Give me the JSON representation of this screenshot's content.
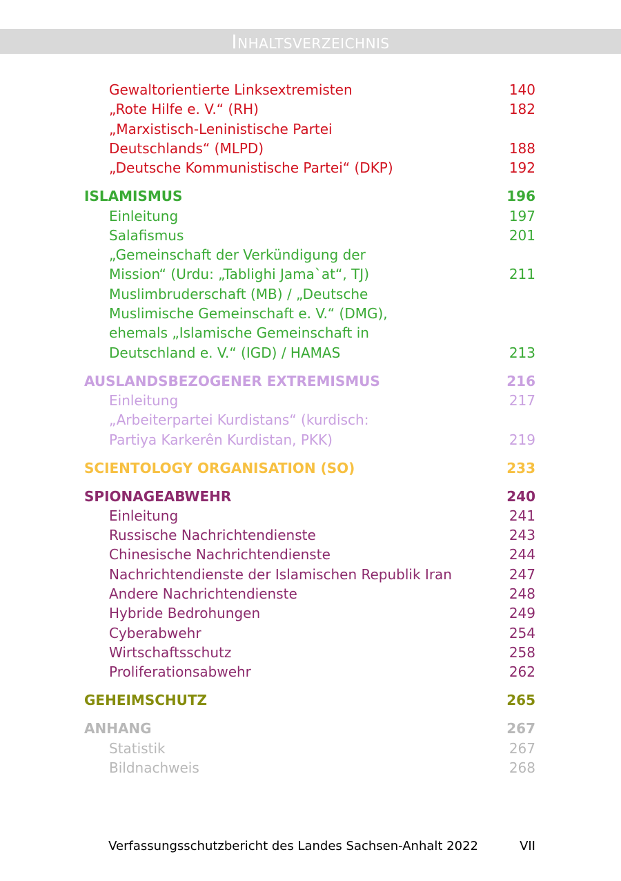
{
  "header": {
    "title": "Inhaltsverzeichnis"
  },
  "sections": [
    {
      "color": "#d1121f",
      "entries": [
        {
          "lines": [
            "Gewaltorientierte Linksextremisten"
          ],
          "page": "140"
        },
        {
          "lines": [
            "„Rote Hilfe e. V.“ (RH)"
          ],
          "page": "182"
        },
        {
          "lines": [
            "„Marxistisch-Leninistische Partei",
            "Deutschlands“ (MLPD)"
          ],
          "page": "188"
        },
        {
          "lines": [
            "„Deutsche Kommunistische Partei“ (DKP)"
          ],
          "page": "192"
        }
      ]
    },
    {
      "color": "#3aaa35",
      "heading": "ISLAMISMUS",
      "page": "196",
      "entries": [
        {
          "lines": [
            "Einleitung"
          ],
          "page": "197"
        },
        {
          "lines": [
            "Salafismus"
          ],
          "page": "201"
        },
        {
          "lines": [
            "„Gemeinschaft der Verkündigung der",
            "Mission“ (Urdu: „Tablighi Jama`at“, TJ)"
          ],
          "page": "211"
        },
        {
          "lines": [
            "Muslimbruderschaft (MB) / „Deutsche",
            "Muslimische Gemeinschaft e. V.“ (DMG),",
            "ehemals „Islamische Gemeinschaft in",
            "Deutschland e. V.“ (IGD) / HAMAS"
          ],
          "page": "213"
        }
      ]
    },
    {
      "color": "#c9a0e0",
      "heading": "AUSLANDSBEZOGENER EXTREMISMUS",
      "page": "216",
      "entries": [
        {
          "lines": [
            "Einleitung"
          ],
          "page": "217"
        },
        {
          "lines": [
            "„Arbeiterpartei Kurdistans“ (kurdisch:",
            "Partiya Karkerên Kurdistan, PKK)"
          ],
          "page": "219"
        }
      ]
    },
    {
      "color": "#f7c041",
      "heading": "SCIENTOLOGY ORGANISATION (SO)",
      "page": "233",
      "entries": []
    },
    {
      "color": "#8c2a6c",
      "heading": "SPIONAGEABWEHR",
      "page": "240",
      "entries": [
        {
          "lines": [
            "Einleitung"
          ],
          "page": "241"
        },
        {
          "lines": [
            "Russische Nachrichtendienste"
          ],
          "page": "243"
        },
        {
          "lines": [
            "Chinesische Nachrichtendienste"
          ],
          "page": "244"
        },
        {
          "lines": [
            "Nachrichtendienste der Islamischen Republik Iran"
          ],
          "page": "247"
        },
        {
          "lines": [
            "Andere Nachrichtendienste"
          ],
          "page": "248"
        },
        {
          "lines": [
            "Hybride Bedrohungen"
          ],
          "page": "249"
        },
        {
          "lines": [
            "Cyberabwehr"
          ],
          "page": "254"
        },
        {
          "lines": [
            "Wirtschaftsschutz"
          ],
          "page": "258"
        },
        {
          "lines": [
            "Proliferationsabwehr"
          ],
          "page": "262"
        }
      ]
    },
    {
      "color": "#858c0c",
      "heading": "GEHEIMSCHUTZ",
      "page": "265",
      "entries": []
    },
    {
      "color": "#b8b8b8",
      "heading": "ANHANG",
      "page": "267",
      "entries": [
        {
          "lines": [
            "Statistik"
          ],
          "page": "267"
        },
        {
          "lines": [
            "Bildnachweis"
          ],
          "page": "268"
        }
      ]
    }
  ],
  "footer": {
    "text": "Verfassungsschutzbericht des Landes Sachsen-Anhalt 2022",
    "page": "VII"
  }
}
